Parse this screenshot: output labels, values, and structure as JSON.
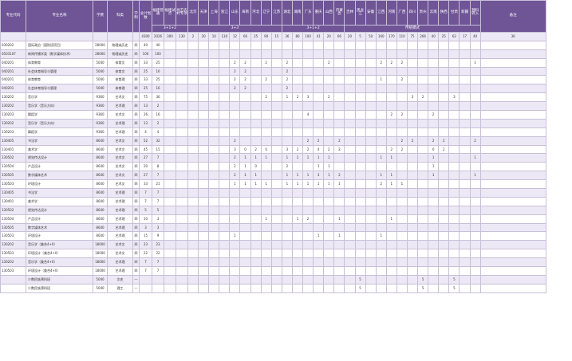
{
  "headers": {
    "code": "专业代码",
    "name": "专业名称",
    "fee": "学费",
    "category": "科类",
    "years": "学制",
    "total": "总计划数",
    "fujian_normal": "福建普通",
    "fujian_pilot": "福建试点",
    "local_directed": "地方农村专项",
    "provinces": [
      "北京",
      "天津",
      "上海",
      "浙江",
      "山东",
      "海南",
      "河北",
      "辽宁",
      "江苏",
      "湖北",
      "湖南",
      "广东",
      "重庆",
      "山西",
      "内蒙古",
      "吉林",
      "黑龙江",
      "安徽",
      "江西",
      "河南",
      "广西",
      "四川",
      "贵州",
      "云南",
      "陕西",
      "甘肃",
      "新疆",
      "预科转入"
    ],
    "note": "备注",
    "group_31_2": "3+1+2",
    "group_33": "3+3",
    "group_31_2b": "3+1+2",
    "group_trad": "传统模式"
  },
  "summary": [
    "4300",
    "2026",
    "300",
    "130",
    "2",
    "20",
    "10",
    "130",
    "12",
    "66",
    "25",
    "90",
    "15",
    "36",
    "80",
    "100",
    "41",
    "20",
    "66",
    "20",
    "5",
    "50",
    "160",
    "170",
    "110",
    "75",
    "266",
    "40",
    "25",
    "62",
    "17",
    "40",
    "36",
    "30"
  ],
  "rows": [
    {
      "code": "030202",
      "name": "国际政治（国防班项目）",
      "fee": "28000",
      "cat": "物理或历史",
      "yrs": "四",
      "c": [
        "40",
        "40",
        "",
        "",
        "",
        "",
        "",
        "",
        "",
        "",
        "",
        "",
        "",
        "",
        "",
        "",
        "",
        "",
        "",
        "",
        "",
        "",
        "",
        "",
        "",
        "",
        "",
        "",
        "",
        "",
        "",
        "",
        "",
        ""
      ],
      "note": "国防班项目合作项目"
    },
    {
      "code": "0503107",
      "name": "新闻传播学类（数字媒体技术）",
      "fee": "28000",
      "cat": "物理或历史",
      "yrs": "四",
      "c": [
        "100",
        "100",
        "",
        "",
        "",
        "",
        "",
        "",
        "",
        "",
        "",
        "",
        "",
        "",
        "",
        "",
        "",
        "",
        "",
        "",
        "",
        "",
        "",
        "",
        "",
        "",
        "",
        "",
        "",
        "",
        "",
        "",
        "",
        ""
      ],
      "note": "国防班项目合作项目"
    },
    {
      "code": "040201",
      "name": "体育教育",
      "fee": "5040",
      "cat": "体育文",
      "yrs": "四",
      "c": [
        "33",
        "25",
        "",
        "",
        "",
        "",
        "",
        "",
        "2",
        "2",
        "",
        "2",
        "",
        "2",
        "",
        "",
        "",
        "2",
        "",
        "",
        "",
        "",
        "2",
        "2",
        "2",
        "",
        "",
        "",
        "",
        "",
        "",
        "1",
        "",
        ""
      ],
      "note": "师范类"
    },
    {
      "code": "040201",
      "name": "社会体育指导与管理",
      "fee": "5040",
      "cat": "体育文",
      "yrs": "四",
      "c": [
        "25",
        "16",
        "",
        "",
        "",
        "",
        "",
        "",
        "2",
        "2",
        "",
        "",
        "",
        "2",
        "",
        "",
        "",
        "",
        "",
        "",
        "",
        "",
        "",
        "",
        "",
        "",
        "",
        "",
        "",
        "",
        "",
        "",
        "",
        ""
      ],
      "note": ""
    },
    {
      "code": "040201",
      "name": "体育教育",
      "fee": "5040",
      "cat": "体育理",
      "yrs": "四",
      "c": [
        "33",
        "25",
        "",
        "",
        "",
        "",
        "",
        "",
        "2",
        "2",
        "",
        "2",
        "",
        "2",
        "",
        "",
        "",
        "",
        "",
        "",
        "",
        "",
        "1",
        "",
        "2",
        "",
        "",
        "",
        "",
        "",
        "",
        "",
        "",
        ""
      ],
      "note": "师范类"
    },
    {
      "code": "040201",
      "name": "社会体育指导与管理",
      "fee": "5040",
      "cat": "体育理",
      "yrs": "四",
      "c": [
        "25",
        "16",
        "",
        "",
        "",
        "",
        "",
        "",
        "2",
        "2",
        "",
        "",
        "",
        "2",
        "",
        "",
        "",
        "",
        "",
        "",
        "",
        "",
        "",
        "",
        "",
        "",
        "",
        "",
        "",
        "",
        "",
        "",
        "",
        ""
      ],
      "note": ""
    },
    {
      "code": "130202",
      "name": "音乐学",
      "fee": "9360",
      "cat": "艺术文",
      "yrs": "四",
      "c": [
        "75",
        "36",
        "",
        "",
        "",
        "",
        "",
        "",
        "",
        "",
        "",
        "2",
        "",
        "1",
        "2",
        "3",
        "",
        "2",
        "",
        "",
        "",
        "",
        "",
        "",
        "",
        "3",
        "2",
        "",
        "",
        "3",
        "",
        "",
        "",
        ""
      ],
      "note": "师范类"
    },
    {
      "code": "130202",
      "name": "音乐学（音乐方向）",
      "fee": "9360",
      "cat": "艺术理",
      "yrs": "四",
      "c": [
        "13",
        "2",
        "",
        "",
        "",
        "",
        "",
        "",
        "",
        "",
        "",
        "",
        "",
        "",
        "",
        "",
        "",
        "",
        "",
        "",
        "",
        "",
        "",
        "",
        "",
        "",
        "",
        "",
        "",
        "",
        "",
        "",
        "",
        ""
      ],
      "note": "师范类"
    },
    {
      "code": "130203",
      "name": "舞蹈学",
      "fee": "9360",
      "cat": "艺术文",
      "yrs": "四",
      "c": [
        "26",
        "16",
        "",
        "",
        "",
        "",
        "",
        "",
        "",
        "",
        "",
        "",
        "",
        "",
        "",
        "4",
        "",
        "",
        "",
        "",
        "",
        "",
        "",
        "2",
        "2",
        "",
        "",
        "2",
        "",
        "",
        "",
        "",
        "",
        ""
      ],
      "note": "师范类"
    },
    {
      "code": "130202",
      "name": "音乐学（音乐方向）",
      "fee": "9360",
      "cat": "艺术理",
      "yrs": "四",
      "c": [
        "13",
        "2",
        "",
        "",
        "",
        "",
        "",
        "",
        "",
        "",
        "",
        "",
        "",
        "",
        "",
        "",
        "",
        "",
        "",
        "",
        "",
        "",
        "",
        "",
        "",
        "",
        "",
        "",
        "",
        "",
        "",
        "",
        "",
        ""
      ],
      "note": "师范类"
    },
    {
      "code": "130203",
      "name": "舞蹈学",
      "fee": "9360",
      "cat": "艺术理",
      "yrs": "四",
      "c": [
        "4",
        "4",
        "",
        "",
        "",
        "",
        "",
        "",
        "",
        "",
        "",
        "",
        "",
        "",
        "",
        "",
        "",
        "",
        "",
        "",
        "",
        "",
        "",
        "",
        "",
        "",
        "",
        "",
        "",
        "",
        "",
        "",
        "",
        ""
      ],
      "note": "师范类"
    },
    {
      "code": "130405",
      "name": "书法学",
      "fee": "8640",
      "cat": "艺术文",
      "yrs": "四",
      "c": [
        "52",
        "32",
        "",
        "",
        "",
        "",
        "",
        "",
        "2",
        "",
        "",
        "",
        "",
        "",
        "",
        "2",
        "2",
        "",
        "2",
        "",
        "",
        "",
        "",
        "",
        "2",
        "2",
        "",
        "2",
        "2",
        "",
        "",
        "2",
        "",
        ""
      ],
      "note": "师范类"
    },
    {
      "code": "130401",
      "name": "美术学",
      "fee": "8640",
      "cat": "艺术文",
      "yrs": "四",
      "c": [
        "45",
        "15",
        "",
        "",
        "",
        "",
        "",
        "",
        "3",
        "0",
        "2",
        "0",
        "",
        "3",
        "2",
        "2",
        "4",
        "2",
        "2",
        "",
        "",
        "",
        "",
        "2",
        "2",
        "",
        "",
        "0",
        "2",
        "",
        "",
        "",
        "",
        ""
      ],
      "note": "师范类"
    },
    {
      "code": "130502",
      "name": "视觉传达设计",
      "fee": "8640",
      "cat": "艺术文",
      "yrs": "四",
      "c": [
        "27",
        "7",
        "",
        "",
        "",
        "",
        "",
        "",
        "2",
        "1",
        "1",
        "1",
        "",
        "1",
        "1",
        "1",
        "1",
        "1",
        "",
        "",
        "",
        "",
        "1",
        "1",
        "",
        "",
        "",
        "1",
        "",
        "",
        "",
        "1",
        "",
        ""
      ],
      "note": ""
    },
    {
      "code": "130504",
      "name": "产品设计",
      "fee": "8640",
      "cat": "艺术文",
      "yrs": "四",
      "c": [
        "20",
        "8",
        "",
        "",
        "",
        "",
        "",
        "",
        "2",
        "1",
        "0",
        "",
        "",
        "2",
        "",
        "",
        "1",
        "1",
        "",
        "",
        "",
        "",
        "",
        "",
        "",
        "",
        "",
        "1",
        "",
        "",
        "",
        "",
        "",
        ""
      ],
      "note": ""
    },
    {
      "code": "130505",
      "name": "数字媒体艺术",
      "fee": "8640",
      "cat": "艺术文",
      "yrs": "四",
      "c": [
        "27",
        "7",
        "",
        "",
        "",
        "",
        "",
        "",
        "2",
        "1",
        "1",
        "",
        "",
        "1",
        "1",
        "1",
        "3",
        "1",
        "2",
        "",
        "",
        "",
        "1",
        "1",
        "",
        "",
        "",
        "1",
        "",
        "",
        "",
        "1",
        "",
        ""
      ],
      "note": ""
    },
    {
      "code": "130503",
      "name": "环境设计",
      "fee": "8640",
      "cat": "艺术文",
      "yrs": "四",
      "c": [
        "33",
        "21",
        "",
        "",
        "",
        "",
        "",
        "",
        "1",
        "1",
        "1",
        "1",
        "",
        "1",
        "1",
        "1",
        "1",
        "1",
        "1",
        "",
        "",
        "",
        "2",
        "1",
        "1",
        "",
        "",
        "",
        "",
        "",
        "",
        "",
        "",
        ""
      ],
      "note": ""
    },
    {
      "code": "130405",
      "name": "书法学",
      "fee": "8640",
      "cat": "艺术理",
      "yrs": "四",
      "c": [
        "7",
        "7",
        "",
        "",
        "",
        "",
        "",
        "",
        "",
        "",
        "",
        "",
        "",
        "",
        "",
        "",
        "",
        "",
        "",
        "",
        "",
        "",
        "",
        "",
        "",
        "",
        "",
        "",
        "",
        "",
        "",
        "",
        "",
        ""
      ],
      "note": "师范类"
    },
    {
      "code": "130401",
      "name": "美术学",
      "fee": "8640",
      "cat": "艺术理",
      "yrs": "四",
      "c": [
        "7",
        "7",
        "",
        "",
        "",
        "",
        "",
        "",
        "",
        "",
        "",
        "",
        "",
        "",
        "",
        "",
        "",
        "",
        "",
        "",
        "",
        "",
        "",
        "",
        "",
        "",
        "",
        "",
        "",
        "",
        "",
        "",
        "",
        ""
      ],
      "note": "师范类"
    },
    {
      "code": "130502",
      "name": "视觉传达设计",
      "fee": "8640",
      "cat": "艺术理",
      "yrs": "四",
      "c": [
        "5",
        "5",
        "",
        "",
        "",
        "",
        "",
        "",
        "",
        "",
        "",
        "",
        "",
        "",
        "",
        "",
        "",
        "",
        "",
        "",
        "",
        "",
        "",
        "",
        "",
        "",
        "",
        "",
        "",
        "",
        "",
        "",
        "",
        ""
      ],
      "note": ""
    },
    {
      "code": "130504",
      "name": "产品设计",
      "fee": "8640",
      "cat": "艺术理",
      "yrs": "四",
      "c": [
        "10",
        "3",
        "",
        "",
        "",
        "",
        "",
        "",
        "",
        "",
        "",
        "1",
        "",
        "",
        "1",
        "2",
        "",
        "",
        "1",
        "",
        "",
        "",
        "",
        "1",
        "",
        "",
        "",
        "",
        "",
        "",
        "",
        "",
        "",
        ""
      ],
      "note": ""
    },
    {
      "code": "130505",
      "name": "数字媒体艺术",
      "fee": "8640",
      "cat": "艺术理",
      "yrs": "四",
      "c": [
        "3",
        "3",
        "",
        "",
        "",
        "",
        "",
        "",
        "",
        "",
        "",
        "",
        "",
        "",
        "",
        "",
        "",
        "",
        "",
        "",
        "",
        "",
        "",
        "",
        "",
        "",
        "",
        "",
        "",
        "",
        "",
        "",
        "",
        ""
      ],
      "note": ""
    },
    {
      "code": "130503",
      "name": "环境设计",
      "fee": "8640",
      "cat": "艺术理",
      "yrs": "四",
      "c": [
        "15",
        "9",
        "",
        "",
        "",
        "",
        "",
        "",
        "1",
        "",
        "",
        "",
        "",
        "",
        "",
        "",
        "1",
        "",
        "1",
        "",
        "",
        "",
        "1",
        "",
        "",
        "",
        "",
        "",
        "",
        "",
        "",
        "",
        "",
        ""
      ],
      "note": ""
    },
    {
      "code": "130202",
      "name": "音乐学（美合4+0）",
      "fee": "18000",
      "cat": "艺术文",
      "yrs": "四",
      "c": [
        "23",
        "23",
        "",
        "",
        "",
        "",
        "",
        "",
        "",
        "",
        "",
        "",
        "",
        "",
        "",
        "",
        "",
        "",
        "",
        "",
        "",
        "",
        "",
        "",
        "",
        "",
        "",
        "",
        "",
        "",
        "",
        "",
        "",
        ""
      ],
      "note": ""
    },
    {
      "code": "130503",
      "name": "环境设计（美合4+0）",
      "fee": "18000",
      "cat": "艺术文",
      "yrs": "四",
      "c": [
        "22",
        "22",
        "",
        "",
        "",
        "",
        "",
        "",
        "",
        "",
        "",
        "",
        "",
        "",
        "",
        "",
        "",
        "",
        "",
        "",
        "",
        "",
        "",
        "",
        "",
        "",
        "",
        "",
        "",
        "",
        "",
        "",
        "",
        ""
      ],
      "note": ""
    },
    {
      "code": "130202",
      "name": "音乐学（美合4+0）",
      "fee": "18000",
      "cat": "艺术理",
      "yrs": "四",
      "c": [
        "7",
        "7",
        "",
        "",
        "",
        "",
        "",
        "",
        "",
        "",
        "",
        "",
        "",
        "",
        "",
        "",
        "",
        "",
        "",
        "",
        "",
        "",
        "",
        "",
        "",
        "",
        "",
        "",
        "",
        "",
        "",
        "",
        "",
        ""
      ],
      "note": ""
    },
    {
      "code": "130503",
      "name": "环境设计（美合4+0）",
      "fee": "18000",
      "cat": "艺术理",
      "yrs": "四",
      "c": [
        "7",
        "7",
        "",
        "",
        "",
        "",
        "",
        "",
        "",
        "",
        "",
        "",
        "",
        "",
        "",
        "",
        "",
        "",
        "",
        "",
        "",
        "",
        "",
        "",
        "",
        "",
        "",
        "",
        "",
        "",
        "",
        "",
        "",
        ""
      ],
      "note": ""
    },
    {
      "code": "",
      "name": "少数民族预科班",
      "fee": "5040",
      "cat": "文史",
      "yrs": "一",
      "c": [
        "",
        "",
        "",
        "",
        "",
        "",
        "",
        "",
        "",
        "",
        "",
        "",
        "",
        "",
        "",
        "",
        "",
        "",
        "",
        "",
        "5",
        "",
        "",
        "",
        "",
        "",
        "5",
        "",
        "",
        "5",
        "",
        "",
        "",
        ""
      ],
      "note": ""
    },
    {
      "code": "",
      "name": "少数民族预科班",
      "fee": "5040",
      "cat": "理工",
      "yrs": "一",
      "c": [
        "",
        "",
        "",
        "",
        "",
        "",
        "",
        "",
        "",
        "",
        "",
        "",
        "",
        "",
        "",
        "",
        "",
        "",
        "",
        "",
        "5",
        "",
        "",
        "",
        "",
        "",
        "5",
        "",
        "",
        "5",
        "",
        "",
        "",
        ""
      ],
      "note": ""
    }
  ]
}
